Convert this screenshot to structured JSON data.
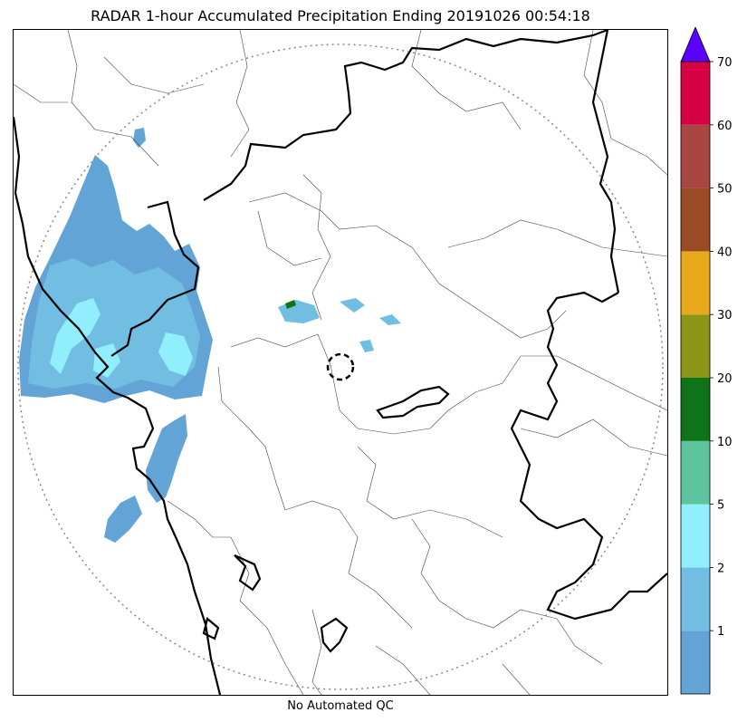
{
  "title": "RADAR 1-hour Accumulated Precipitation Ending 20191026 00:54:18",
  "footnote": "No Automated QC",
  "colors": {
    "light_blue": "#62a4d6",
    "sky_blue": "#72bde2",
    "cyan": "#90eefd",
    "teal": "#5dc49d",
    "dark_green": "#0e7417",
    "olive": "#8b9518",
    "orange": "#e8a91b",
    "brown": "#9a4b26",
    "red_brown": "#a84641",
    "crimson": "#d60044",
    "overflow": "#5a00ff"
  },
  "colorbar": {
    "levels": [
      {
        "color": "#62a4d6",
        "label": "1"
      },
      {
        "color": "#72bde2",
        "label": "2"
      },
      {
        "color": "#90eefd",
        "label": "5"
      },
      {
        "color": "#5dc49d",
        "label": "10"
      },
      {
        "color": "#0e7417",
        "label": "20"
      },
      {
        "color": "#8b9518",
        "label": "30"
      },
      {
        "color": "#e8a91b",
        "label": "40"
      },
      {
        "color": "#9a4b26",
        "label": "50"
      },
      {
        "color": "#a84641",
        "label": "60"
      },
      {
        "color": "#d60044",
        "label": "70"
      }
    ],
    "overflow_color": "#5a00ff"
  }
}
